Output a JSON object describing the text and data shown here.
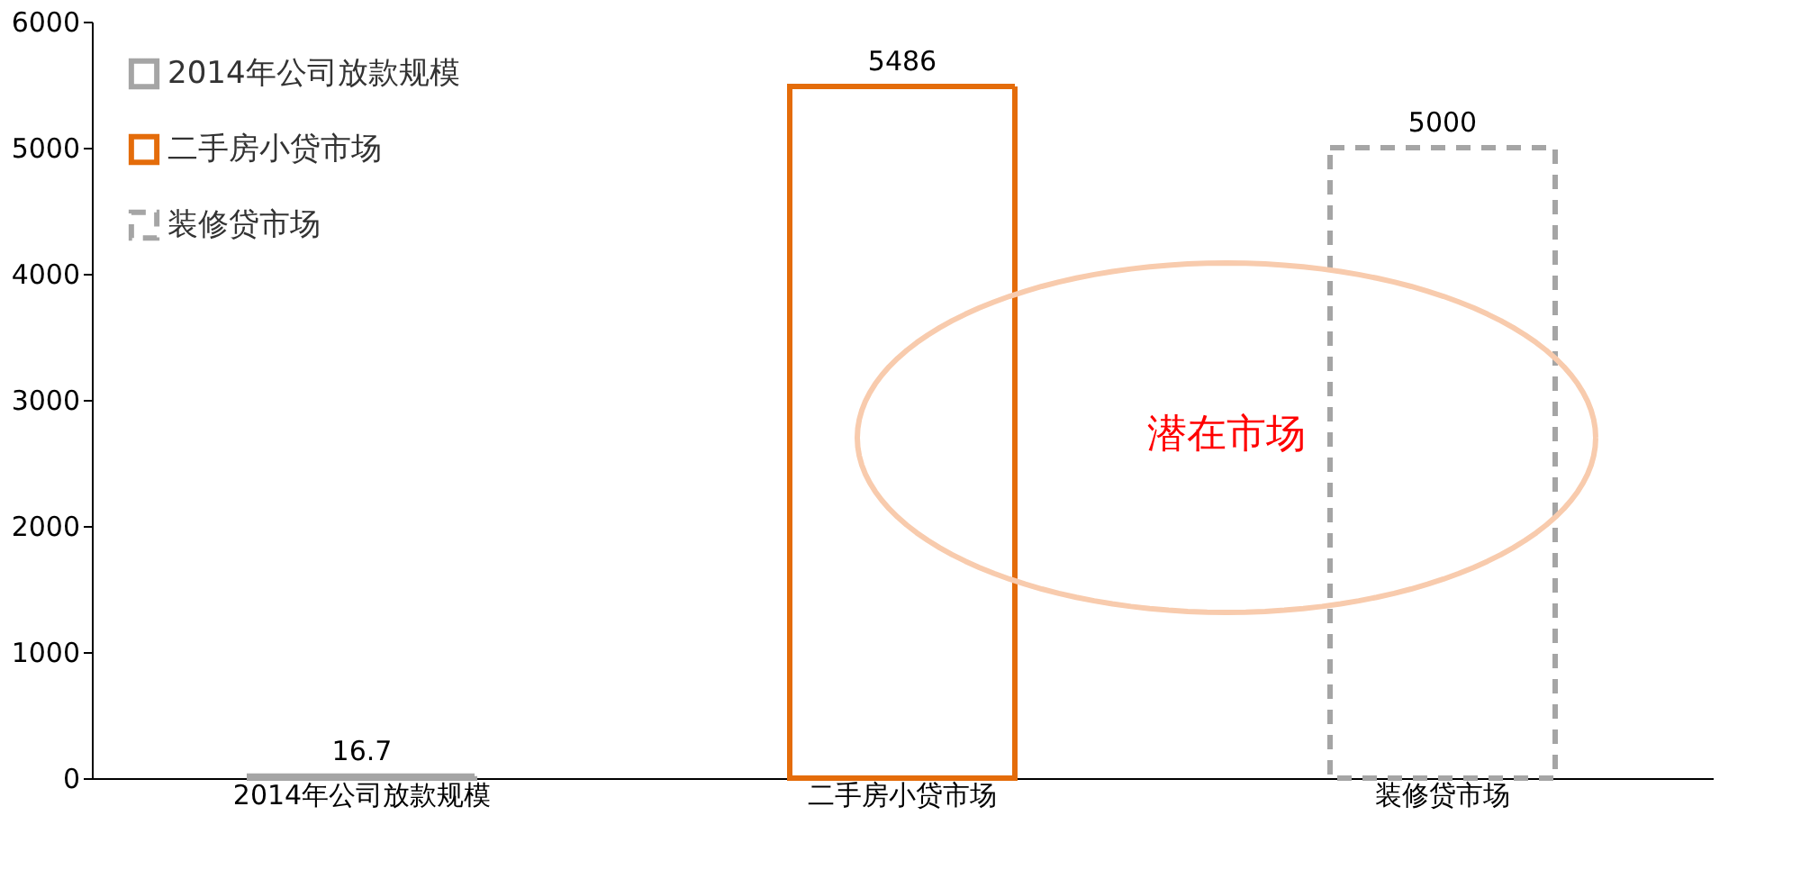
{
  "chart_data": {
    "type": "bar",
    "categories": [
      "2014年公司放款规模",
      "二手房小贷市场",
      "装修贷市场"
    ],
    "series": [
      {
        "name": "2014年公司放款规模",
        "color": "#a5a5a5",
        "line_style": "solid",
        "values": [
          16.7,
          null,
          null
        ]
      },
      {
        "name": "二手房小贷市场",
        "color": "#e46c0a",
        "line_style": "solid",
        "values": [
          null,
          5486,
          null
        ]
      },
      {
        "name": "装修贷市场",
        "color": "#a5a5a5",
        "line_style": "dashed",
        "values": [
          null,
          null,
          5000
        ]
      }
    ],
    "ylim": [
      0,
      6000
    ],
    "yticks": [
      0,
      1000,
      2000,
      3000,
      4000,
      5000,
      6000
    ],
    "grid": false,
    "legend": "top left",
    "data_labels": true,
    "annotations": [
      "潜在市场"
    ]
  }
}
